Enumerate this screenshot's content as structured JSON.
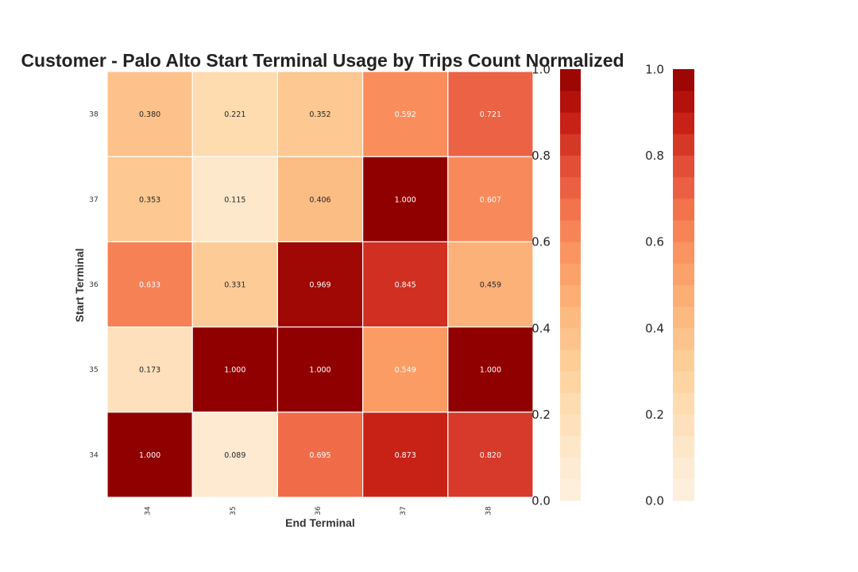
{
  "chart_data": {
    "type": "heatmap",
    "title": "Customer - Palo Alto Start Terminal Usage by Trips Count Normalized",
    "xlabel": "End Terminal",
    "ylabel": "Start Terminal",
    "x_categories": [
      "34",
      "35",
      "36",
      "37",
      "38"
    ],
    "y_categories": [
      "38",
      "37",
      "36",
      "35",
      "34"
    ],
    "values": [
      [
        0.38,
        0.221,
        0.352,
        0.592,
        0.721
      ],
      [
        0.353,
        0.115,
        0.406,
        1.0,
        0.607
      ],
      [
        0.633,
        0.331,
        0.969,
        0.845,
        0.459
      ],
      [
        0.173,
        1.0,
        1.0,
        0.549,
        1.0
      ],
      [
        1.0,
        0.089,
        0.695,
        0.873,
        0.82
      ]
    ],
    "cell_labels": [
      [
        "0.380",
        "0.221",
        "0.352",
        "0.592",
        "0.721"
      ],
      [
        "0.353",
        "0.115",
        "0.406",
        "1.000",
        "0.607"
      ],
      [
        "0.633",
        "0.331",
        "0.969",
        "0.845",
        "0.459"
      ],
      [
        "0.173",
        "1.000",
        "1.000",
        "0.549",
        "1.000"
      ],
      [
        "1.000",
        "0.089",
        "0.695",
        "0.873",
        "0.820"
      ]
    ],
    "colormap": "OrRd",
    "colormap_steps": [
      "#fef0e0",
      "#fee8cc",
      "#fedcb0",
      "#fdcc95",
      "#fcb57c",
      "#fb9a63",
      "#f4764f",
      "#e34d38",
      "#c41b12",
      "#900000"
    ],
    "vmin": 0.0,
    "vmax": 1.0,
    "colorbars": [
      {
        "ticks": [
          "0.0",
          "0.2",
          "0.4",
          "0.6",
          "0.8",
          "1.0"
        ],
        "levels": 20
      },
      {
        "ticks": [
          "0.0",
          "0.2",
          "0.4",
          "0.6",
          "0.8",
          "1.0"
        ],
        "levels": 20
      }
    ],
    "grid": false
  }
}
